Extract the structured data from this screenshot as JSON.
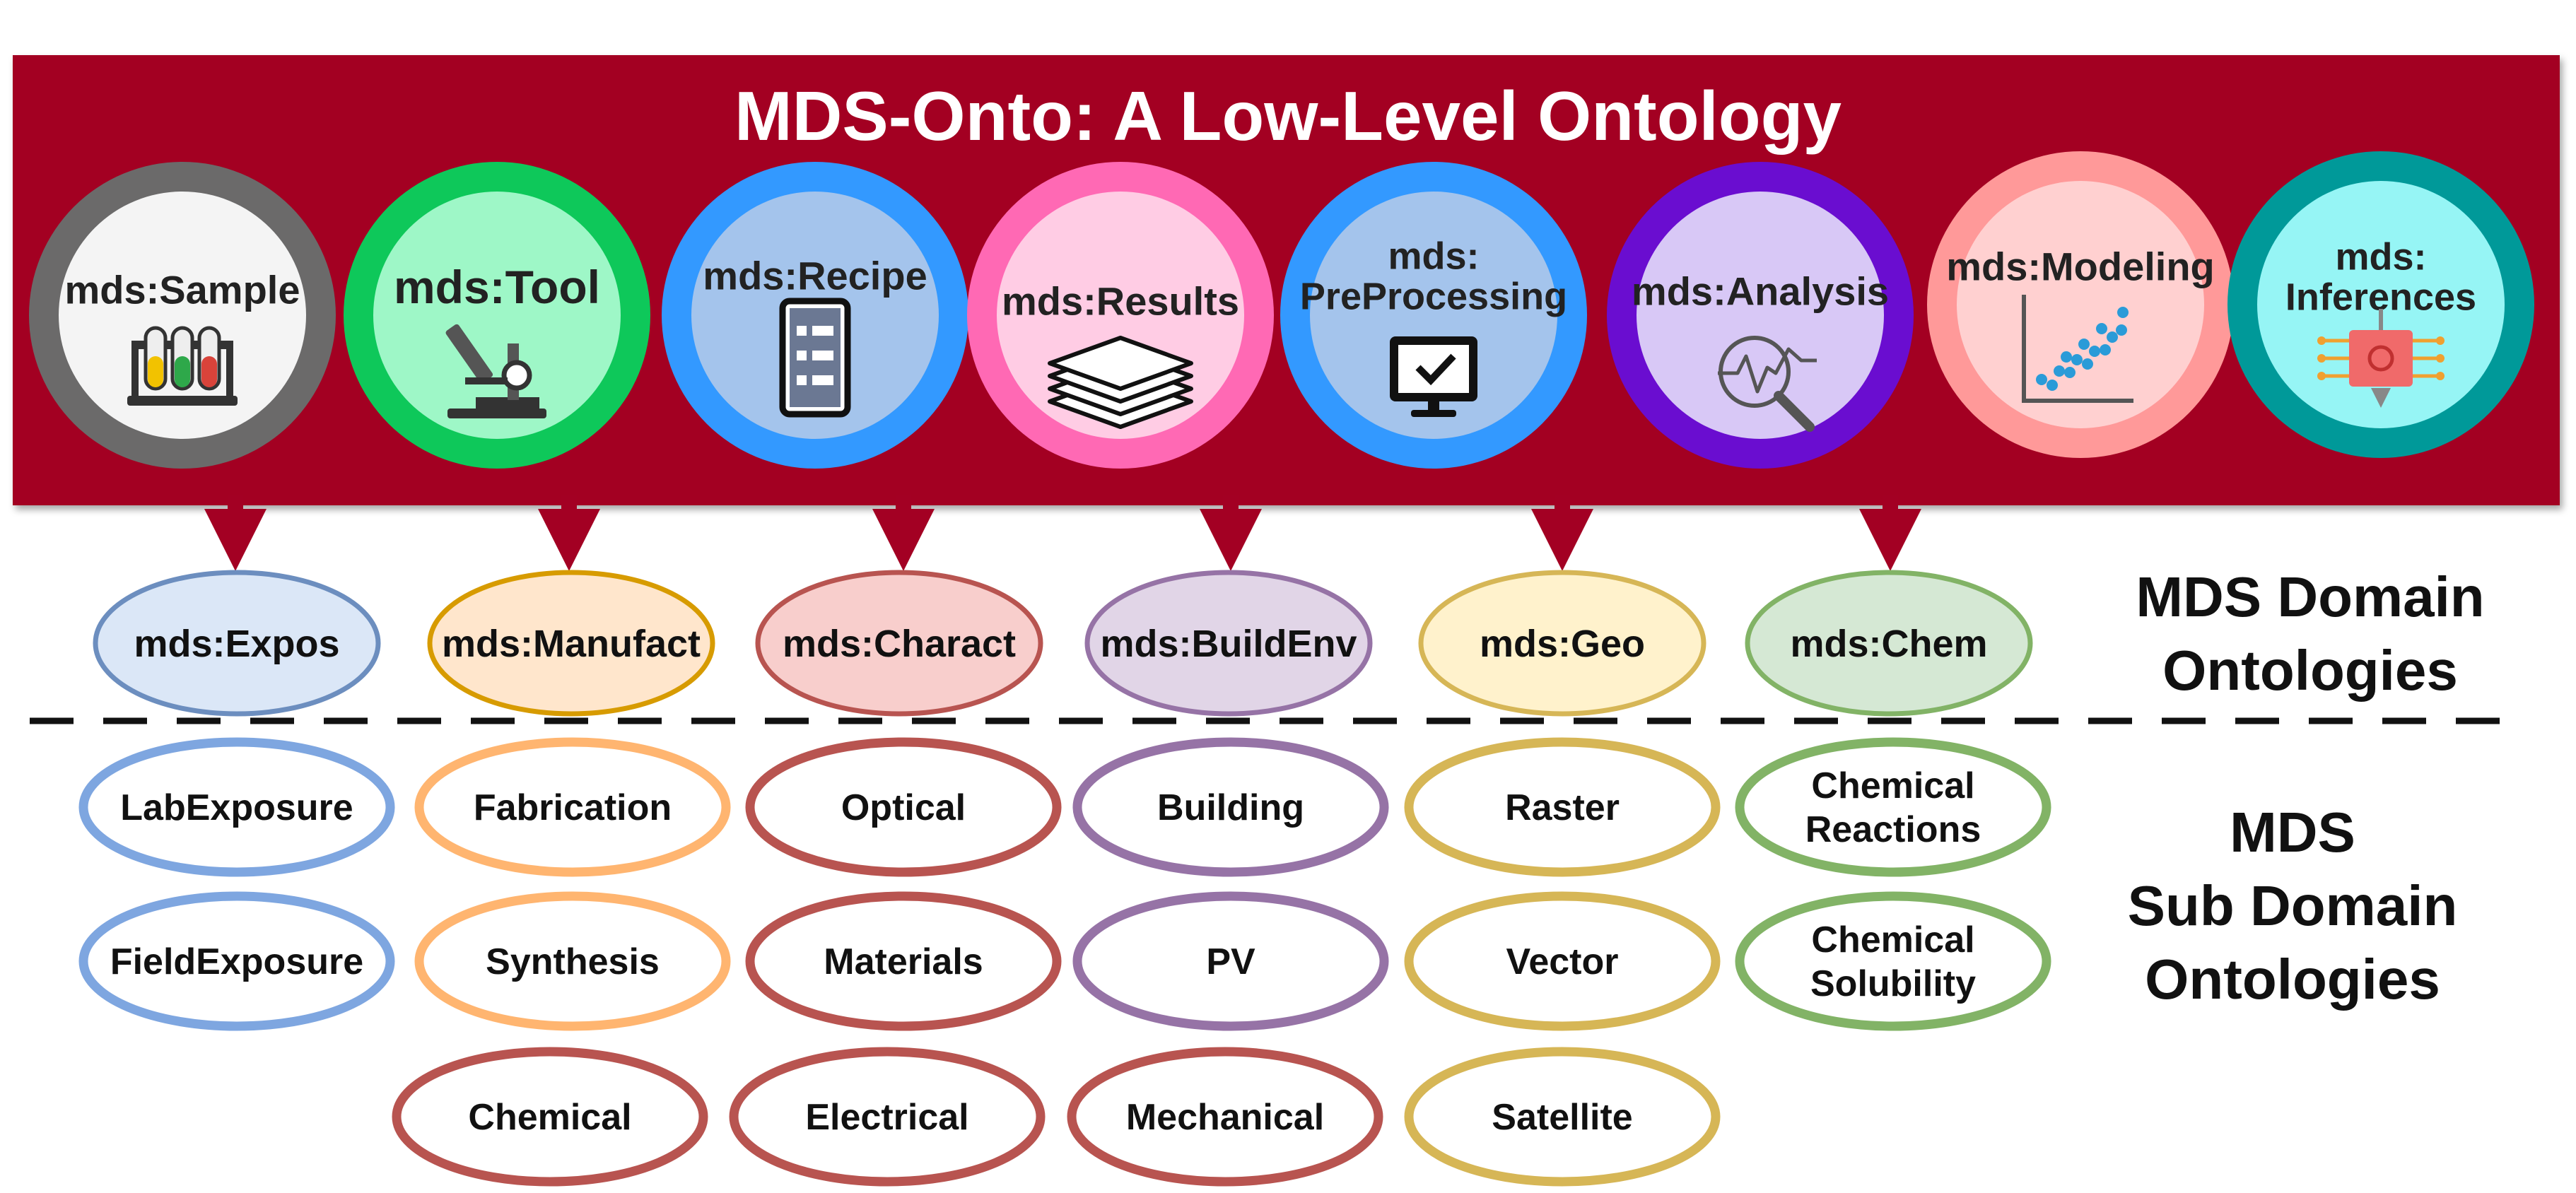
{
  "title": "MDS-Onto: A Low-Level Ontology",
  "colors": {
    "banner": "#a30023",
    "arrow": "#a30023",
    "text": "#111111",
    "white": "#ffffff"
  },
  "upper_concepts": [
    {
      "label": "mds:Sample",
      "icon": "test-tubes-icon",
      "ring": "#6b6a6a",
      "fill": "#f4f4f4"
    },
    {
      "label": "mds:Tool",
      "icon": "microscope-icon",
      "ring": "#0ec85a",
      "fill": "#9ef7c7"
    },
    {
      "label": "mds:Recipe",
      "icon": "recipe-list-icon",
      "ring": "#3399ff",
      "fill": "#a4c4ec"
    },
    {
      "label": "mds:Results",
      "icon": "stacked-layers-icon",
      "ring": "#ff69b4",
      "fill": "#ffcce4"
    },
    {
      "label": "mds:\nPreProcessing",
      "icon": "monitor-check-icon",
      "ring": "#3399ff",
      "fill": "#a4c4ec"
    },
    {
      "label": "mds:Analysis",
      "icon": "magnifier-graph-icon",
      "ring": "#6a0dd0",
      "fill": "#d8c8f6"
    },
    {
      "label": "mds:Modeling",
      "icon": "scatter-plot-icon",
      "ring": "#ff9999",
      "fill": "#ffd0d0"
    },
    {
      "label": "mds:\nInferences",
      "icon": "chip-network-icon",
      "ring": "#009999",
      "fill": "#96f5f5"
    }
  ],
  "domains": [
    {
      "label": "mds:Expos",
      "fill": "#dbe7f7",
      "stroke": "#6c8ebf",
      "subs": [
        {
          "label": "LabExposure"
        },
        {
          "label": "FieldExposure"
        }
      ]
    },
    {
      "label": "mds:Manufact",
      "fill": "#ffe6cc",
      "stroke": "#d79b00",
      "subs": [
        {
          "label": "Fabrication"
        },
        {
          "label": "Synthesis"
        },
        {
          "label": "Chemical"
        }
      ]
    },
    {
      "label": "mds:Charact",
      "fill": "#f8cecc",
      "stroke": "#b85450",
      "subs": [
        {
          "label": "Optical"
        },
        {
          "label": "Materials"
        },
        {
          "label": "Electrical"
        }
      ]
    },
    {
      "label": "mds:BuildEnv",
      "fill": "#e1d5e7",
      "stroke": "#9673a6",
      "subs": [
        {
          "label": "Building"
        },
        {
          "label": "PV"
        },
        {
          "label": "Mechanical"
        }
      ]
    },
    {
      "label": "mds:Geo",
      "fill": "#fff2cc",
      "stroke": "#d6b656",
      "subs": [
        {
          "label": "Raster"
        },
        {
          "label": "Vector"
        },
        {
          "label": "Satellite"
        }
      ]
    },
    {
      "label": "mds:Chem",
      "fill": "#d5e8d4",
      "stroke": "#82b366",
      "subs": [
        {
          "label": "Chemical\nReactions"
        },
        {
          "label": "Chemical\nSolubility"
        }
      ]
    }
  ],
  "sub_colors": {
    "blue": "#7ea6e0",
    "orange": "#ffb570",
    "red": "#b85450",
    "purple": "#9673a6",
    "gold": "#d6b656",
    "green": "#82b366"
  },
  "side_labels": {
    "domain": "MDS Domain\nOntologies",
    "subdomain": "MDS\nSub Domain\nOntologies"
  }
}
